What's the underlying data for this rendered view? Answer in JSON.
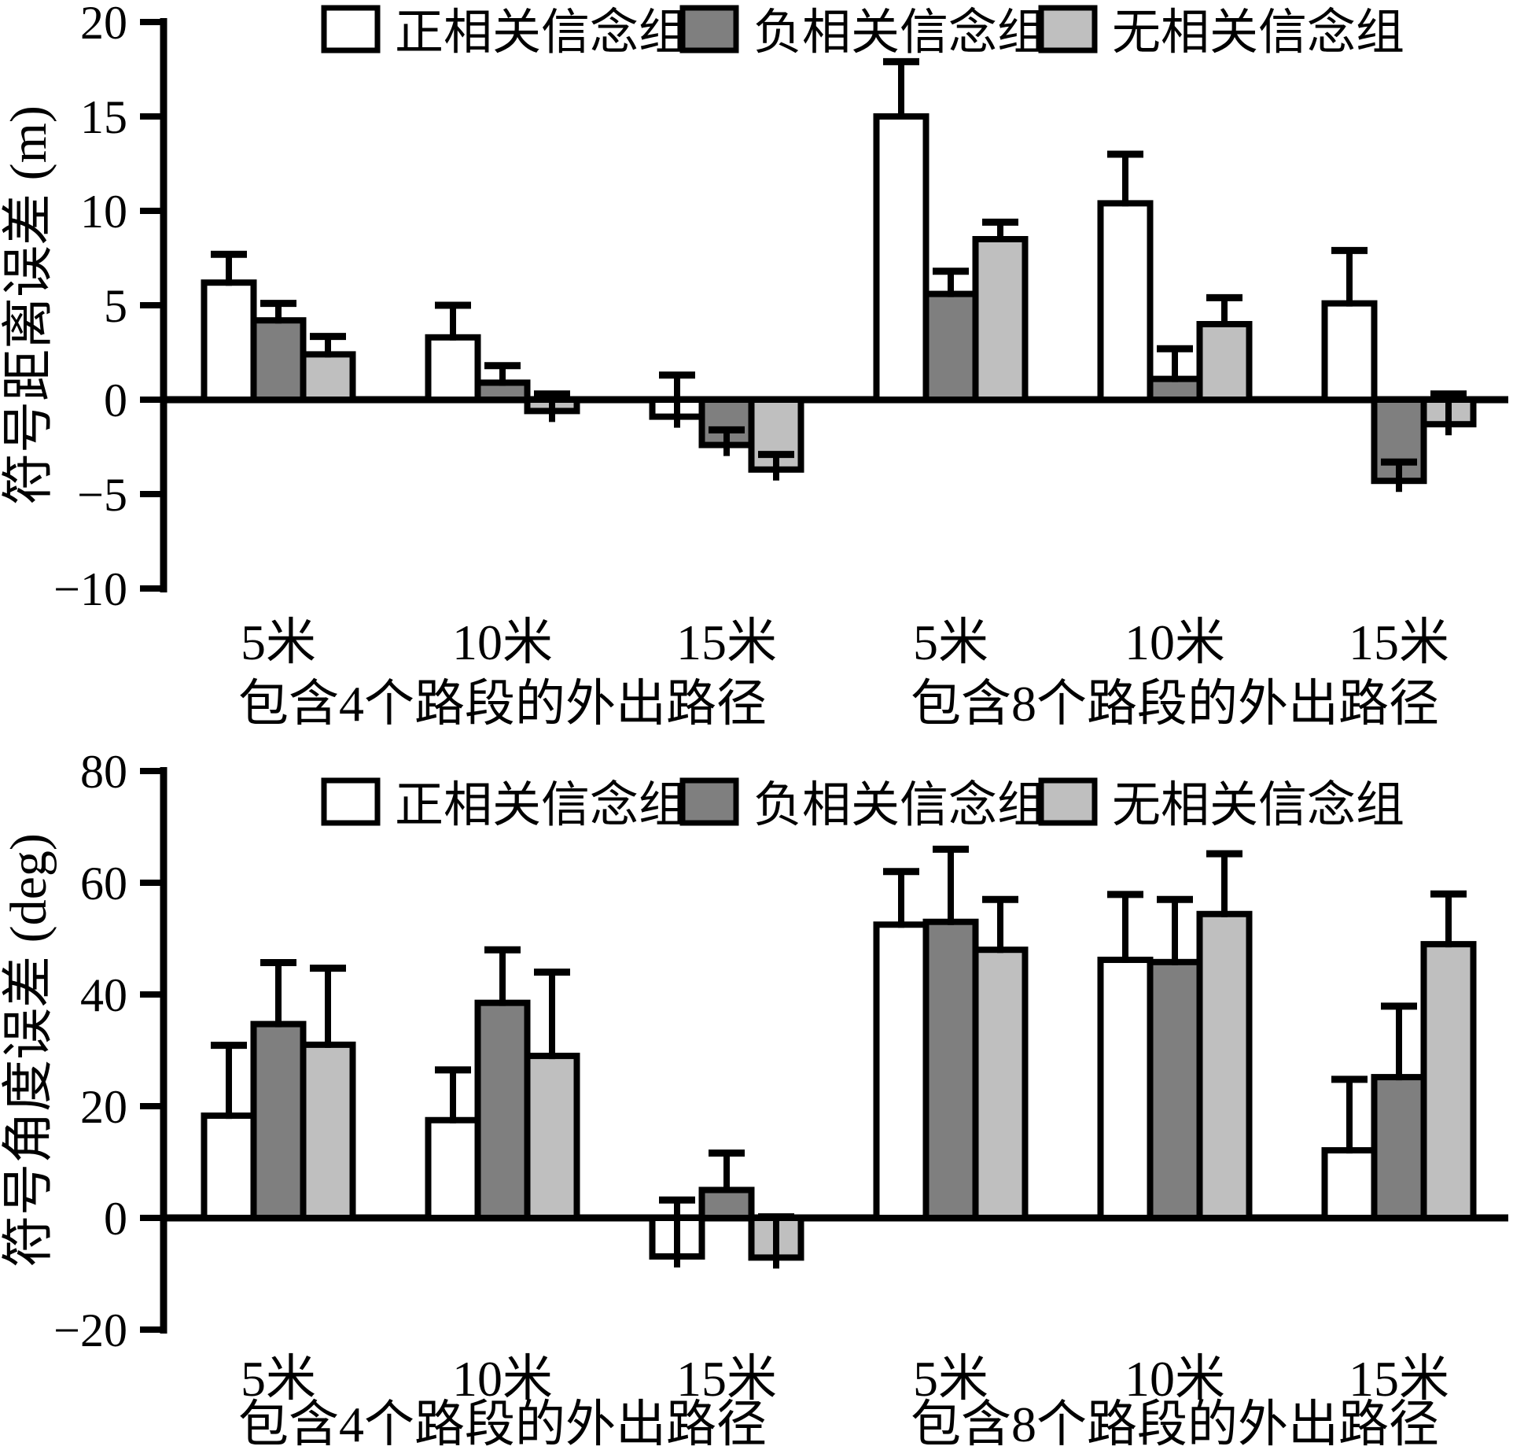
{
  "figure": {
    "background": "#ffffff",
    "bar_border_color": "#000000"
  },
  "legend": {
    "items": [
      {
        "label": "正相关信念组",
        "fill": "#ffffff"
      },
      {
        "label": "负相关信念组",
        "fill": "#7f7f7f"
      },
      {
        "label": "无相关信念组",
        "fill": "#bfbfbf"
      }
    ]
  },
  "chart_data": [
    {
      "type": "bar",
      "title": "",
      "ylabel": "符号距离误差 (m)",
      "xlabel": "",
      "ylim": [
        -10,
        20
      ],
      "ytick_step": 5,
      "yticklabels": [
        "20",
        "15",
        "10",
        "5",
        "0",
        "−5",
        "−10"
      ],
      "categories": [
        "5米",
        "10米",
        "15米",
        "5米",
        "10米",
        "15米"
      ],
      "cluster_captions": [
        "包含4个路段的外出路径",
        "包含8个路段的外出路径"
      ],
      "grid": false,
      "legend_position": "top",
      "error_bars": "upward, cap at value plus error",
      "series": [
        {
          "name": "正相关信念组",
          "fill": "#ffffff",
          "values": [
            6.2,
            3.3,
            -0.9,
            15.0,
            10.4,
            5.1
          ],
          "errors": [
            1.5,
            1.7,
            2.2,
            2.9,
            2.6,
            2.8
          ]
        },
        {
          "name": "负相关信念组",
          "fill": "#7f7f7f",
          "values": [
            4.2,
            0.9,
            -2.4,
            5.6,
            1.1,
            -4.3
          ],
          "errors": [
            0.9,
            0.9,
            0.8,
            1.2,
            1.6,
            1.0
          ]
        },
        {
          "name": "无相关信念组",
          "fill": "#bfbfbf",
          "values": [
            2.4,
            -0.6,
            -3.7,
            8.5,
            4.0,
            -1.3
          ],
          "errors": [
            0.95,
            0.9,
            0.8,
            0.9,
            1.4,
            1.6
          ]
        }
      ]
    },
    {
      "type": "bar",
      "title": "",
      "ylabel": "符号角度误差 (deg)",
      "xlabel": "",
      "ylim": [
        -20,
        80
      ],
      "ytick_step": 20,
      "yticklabels": [
        "80",
        "60",
        "40",
        "20",
        "0",
        "−20"
      ],
      "categories": [
        "5米",
        "10米",
        "15米",
        "5米",
        "10米",
        "15米"
      ],
      "cluster_captions": [
        "包含4个路段的外出路径",
        "包含8个路段的外出路径"
      ],
      "grid": false,
      "legend_position": "top",
      "error_bars": "upward, cap at value plus error",
      "series": [
        {
          "name": "正相关信念组",
          "fill": "#ffffff",
          "values": [
            18.3,
            17.5,
            -6.9,
            52.5,
            46.2,
            12.1
          ],
          "errors": [
            12.6,
            9.0,
            10.1,
            9.5,
            11.7,
            12.7
          ]
        },
        {
          "name": "负相关信念组",
          "fill": "#7f7f7f",
          "values": [
            34.7,
            38.5,
            5.0,
            53.0,
            45.8,
            25.2
          ],
          "errors": [
            11.0,
            9.5,
            6.6,
            13.0,
            11.2,
            12.7
          ]
        },
        {
          "name": "无相关信念组",
          "fill": "#bfbfbf",
          "values": [
            31.0,
            29.0,
            -7.1,
            48.0,
            54.4,
            49.0
          ],
          "errors": [
            13.7,
            15.0,
            7.3,
            9.0,
            10.8,
            9.0
          ]
        }
      ]
    }
  ]
}
